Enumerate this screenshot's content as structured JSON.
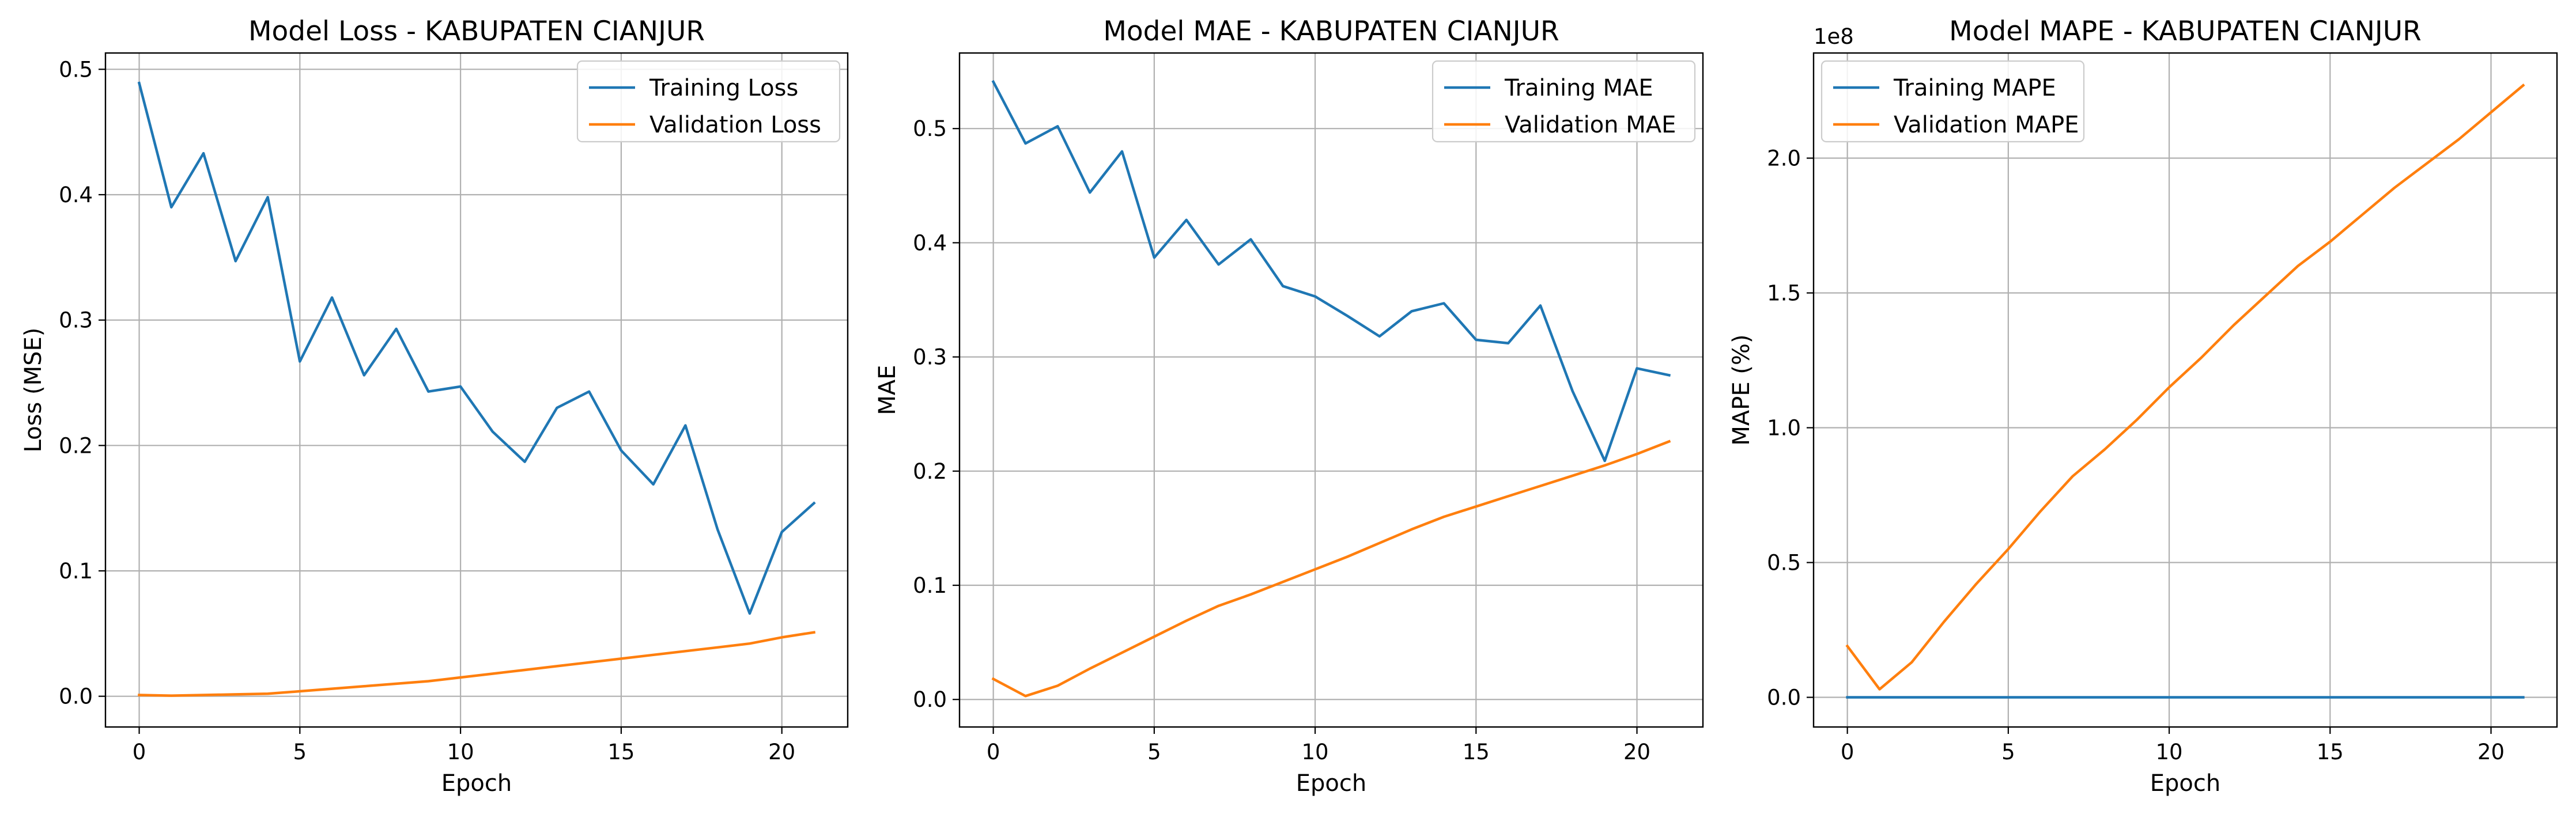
{
  "colors": {
    "training": "#1f77b4",
    "validation": "#ff7f0e",
    "grid": "#b0b0b0"
  },
  "chart_data": [
    {
      "type": "line",
      "title": "Model Loss - KABUPATEN CIANJUR",
      "xlabel": "Epoch",
      "ylabel": "Loss (MSE)",
      "xlim": [
        -1.05,
        22.05
      ],
      "ylim": [
        -0.0245,
        0.513
      ],
      "xticks": [
        0,
        5,
        10,
        15,
        20
      ],
      "xtick_labels": [
        "0",
        "5",
        "10",
        "15",
        "20"
      ],
      "yticks": [
        0.0,
        0.1,
        0.2,
        0.3,
        0.4,
        0.5
      ],
      "ytick_labels": [
        "0.0",
        "0.1",
        "0.2",
        "0.3",
        "0.4",
        "0.5"
      ],
      "grid": true,
      "legend": "top-right",
      "x": [
        0,
        1,
        2,
        3,
        4,
        5,
        6,
        7,
        8,
        9,
        10,
        11,
        12,
        13,
        14,
        15,
        16,
        17,
        18,
        19,
        20,
        21
      ],
      "series": [
        {
          "name": "Training Loss",
          "color": "#1f77b4",
          "values": [
            0.489,
            0.39,
            0.433,
            0.347,
            0.398,
            0.267,
            0.318,
            0.256,
            0.293,
            0.243,
            0.247,
            0.211,
            0.187,
            0.23,
            0.243,
            0.196,
            0.169,
            0.216,
            0.133,
            0.066,
            0.131,
            0.154
          ]
        },
        {
          "name": "Validation Loss",
          "color": "#ff7f0e",
          "values": [
            0.001,
            0.0005,
            0.001,
            0.0015,
            0.002,
            0.004,
            0.006,
            0.008,
            0.01,
            0.012,
            0.015,
            0.018,
            0.021,
            0.024,
            0.027,
            0.03,
            0.033,
            0.036,
            0.039,
            0.042,
            0.047,
            0.051
          ]
        }
      ]
    },
    {
      "type": "line",
      "title": "Model MAE - KABUPATEN CIANJUR",
      "xlabel": "Epoch",
      "ylabel": "MAE",
      "xlim": [
        -1.05,
        22.05
      ],
      "ylim": [
        -0.0241,
        0.5662
      ],
      "xticks": [
        0,
        5,
        10,
        15,
        20
      ],
      "xtick_labels": [
        "0",
        "5",
        "10",
        "15",
        "20"
      ],
      "yticks": [
        0.0,
        0.1,
        0.2,
        0.3,
        0.4,
        0.5
      ],
      "ytick_labels": [
        "0.0",
        "0.1",
        "0.2",
        "0.3",
        "0.4",
        "0.5"
      ],
      "grid": true,
      "legend": "top-right",
      "x": [
        0,
        1,
        2,
        3,
        4,
        5,
        6,
        7,
        8,
        9,
        10,
        11,
        12,
        13,
        14,
        15,
        16,
        17,
        18,
        19,
        20,
        21
      ],
      "series": [
        {
          "name": "Training MAE",
          "color": "#1f77b4",
          "values": [
            0.541,
            0.487,
            0.502,
            0.444,
            0.48,
            0.387,
            0.42,
            0.381,
            0.403,
            0.362,
            0.353,
            0.336,
            0.318,
            0.34,
            0.347,
            0.315,
            0.312,
            0.345,
            0.27,
            0.209,
            0.29,
            0.284
          ]
        },
        {
          "name": "Validation MAE",
          "color": "#ff7f0e",
          "values": [
            0.018,
            0.003,
            0.012,
            0.027,
            0.041,
            0.055,
            0.069,
            0.082,
            0.092,
            0.103,
            0.114,
            0.125,
            0.137,
            0.149,
            0.16,
            0.169,
            0.178,
            0.187,
            0.196,
            0.205,
            0.215,
            0.226
          ]
        }
      ]
    },
    {
      "type": "line",
      "title": "Model MAPE - KABUPATEN CIANJUR",
      "xlabel": "Epoch",
      "ylabel": "MAPE (%)",
      "offset_label": "1e8",
      "xlim": [
        -1.05,
        22.05
      ],
      "ylim": [
        -0.11,
        2.39
      ],
      "xticks": [
        0,
        5,
        10,
        15,
        20
      ],
      "xtick_labels": [
        "0",
        "5",
        "10",
        "15",
        "20"
      ],
      "yticks": [
        0.0,
        0.5,
        1.0,
        1.5,
        2.0
      ],
      "ytick_labels": [
        "0.0",
        "0.5",
        "1.0",
        "1.5",
        "2.0"
      ],
      "grid": true,
      "legend": "top-left",
      "x": [
        0,
        1,
        2,
        3,
        4,
        5,
        6,
        7,
        8,
        9,
        10,
        11,
        12,
        13,
        14,
        15,
        16,
        17,
        18,
        19,
        20,
        21
      ],
      "series": [
        {
          "name": "Training MAPE",
          "color": "#1f77b4",
          "values": [
            0,
            0,
            0,
            0,
            0,
            0,
            0,
            0,
            0,
            0,
            0,
            0,
            0,
            0,
            0,
            0,
            0,
            0,
            0,
            0,
            0,
            0
          ]
        },
        {
          "name": "Validation MAPE",
          "color": "#ff7f0e",
          "values": [
            0.19,
            0.03,
            0.13,
            0.28,
            0.42,
            0.55,
            0.69,
            0.82,
            0.92,
            1.03,
            1.15,
            1.26,
            1.38,
            1.49,
            1.6,
            1.69,
            1.79,
            1.89,
            1.98,
            2.07,
            2.17,
            2.27
          ]
        }
      ]
    }
  ]
}
